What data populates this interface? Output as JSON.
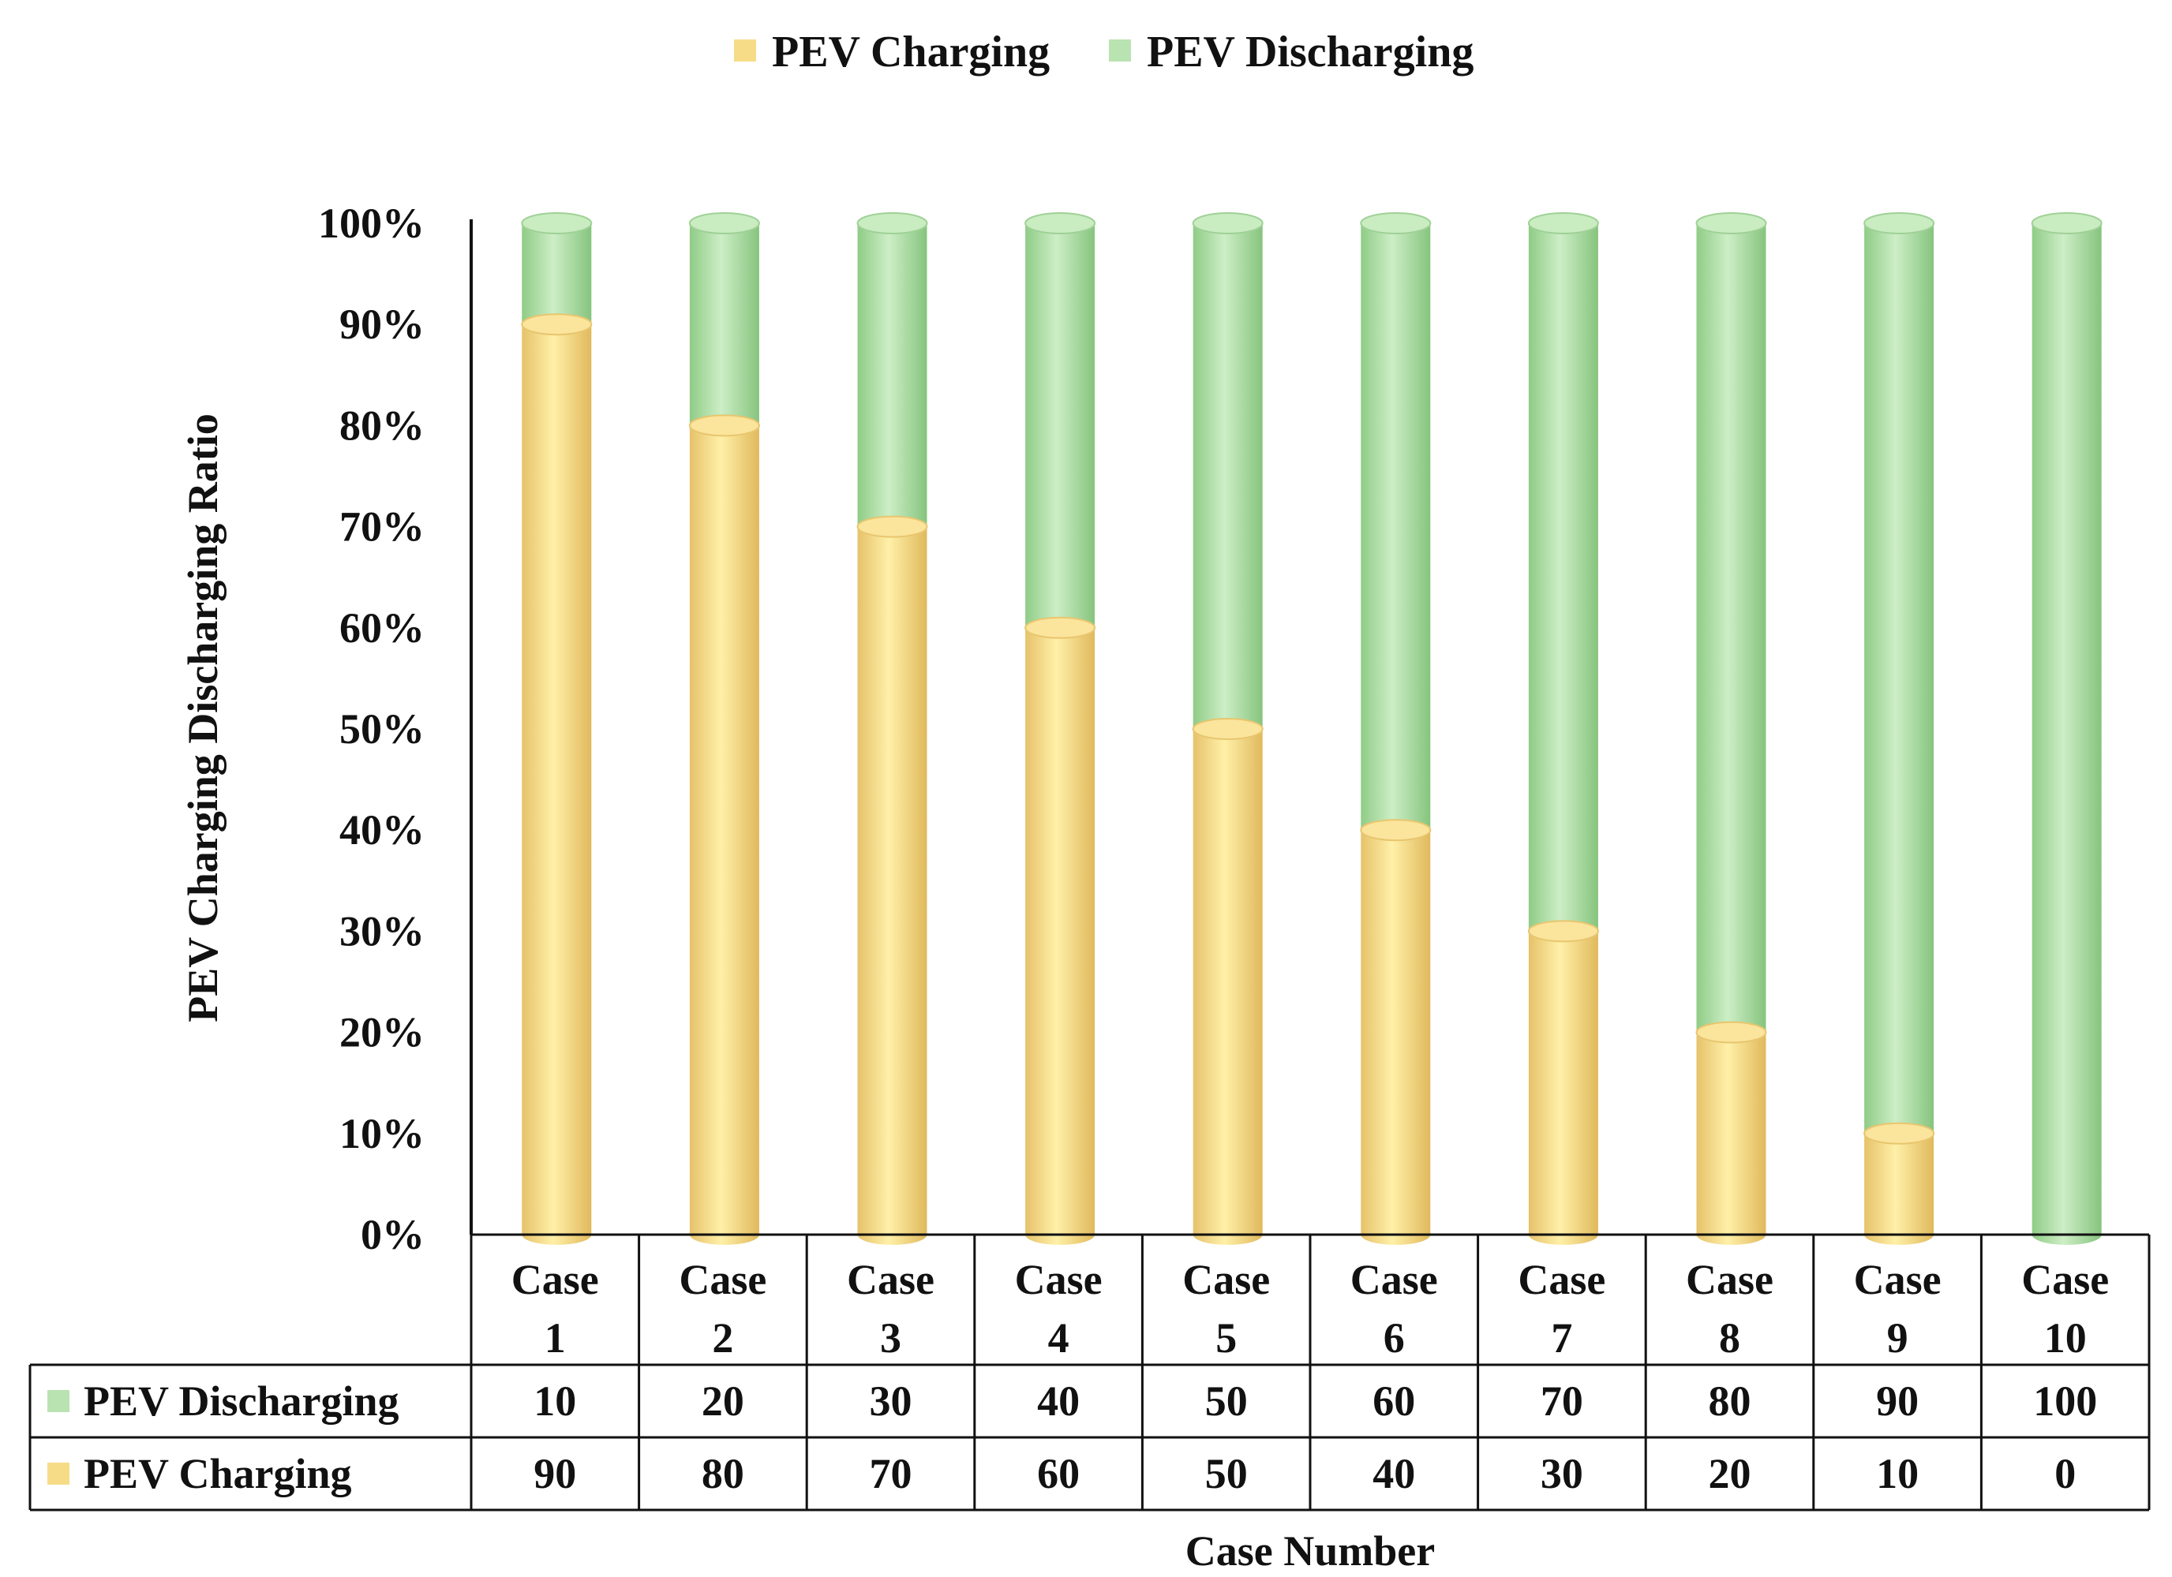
{
  "chart_data": {
    "type": "bar",
    "stacked": "percent",
    "categories": [
      "Case 1",
      "Case 2",
      "Case 3",
      "Case 4",
      "Case 5",
      "Case 6",
      "Case 7",
      "Case 8",
      "Case 9",
      "Case 10"
    ],
    "category_lines": [
      [
        "Case",
        "1"
      ],
      [
        "Case",
        "2"
      ],
      [
        "Case",
        "3"
      ],
      [
        "Case",
        "4"
      ],
      [
        "Case",
        "5"
      ],
      [
        "Case",
        "6"
      ],
      [
        "Case",
        "7"
      ],
      [
        "Case",
        "8"
      ],
      [
        "Case",
        "9"
      ],
      [
        "Case",
        "10"
      ]
    ],
    "series": [
      {
        "name": "PEV Charging",
        "color": "#f7dc87",
        "values": [
          90,
          80,
          70,
          60,
          50,
          40,
          30,
          20,
          10,
          0
        ]
      },
      {
        "name": "PEV Discharging",
        "color": "#b9e3b1",
        "values": [
          10,
          20,
          30,
          40,
          50,
          60,
          70,
          80,
          90,
          100
        ]
      }
    ],
    "title": "",
    "xlabel": "Case Number",
    "ylabel": "PEV Charging  Discharging Ratio",
    "ylim": [
      0,
      100
    ],
    "yticks": [
      "0%",
      "10%",
      "20%",
      "30%",
      "40%",
      "50%",
      "60%",
      "70%",
      "80%",
      "90%",
      "100%"
    ],
    "legend": [
      "PEV Charging",
      "PEV Discharging"
    ],
    "legend_position": "top-center",
    "data_table_rows": [
      {
        "label": "PEV Discharging",
        "color": "#b9e3b1",
        "values": [
          "10",
          "20",
          "30",
          "40",
          "50",
          "60",
          "70",
          "80",
          "90",
          "100"
        ]
      },
      {
        "label": "PEV Charging",
        "color": "#f7dc87",
        "values": [
          "90",
          "80",
          "70",
          "60",
          "50",
          "40",
          "30",
          "20",
          "10",
          "0"
        ]
      }
    ]
  }
}
